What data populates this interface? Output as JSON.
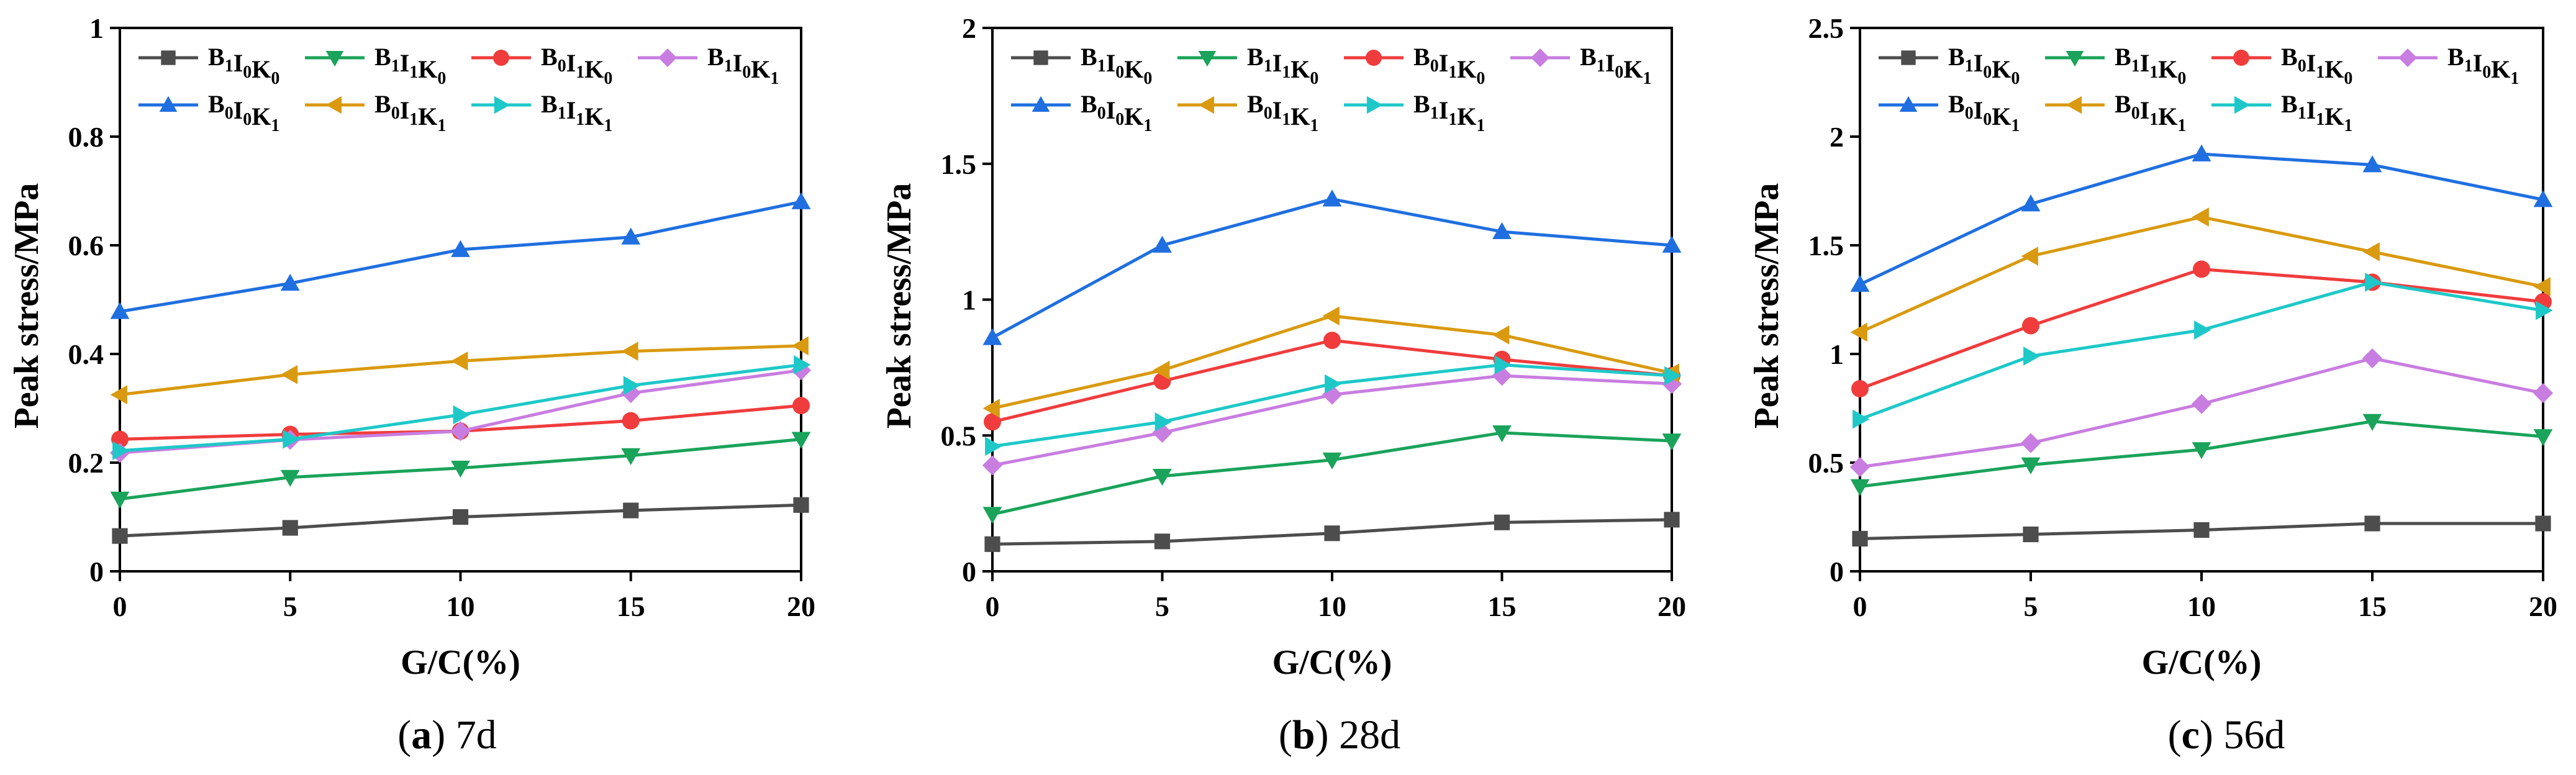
{
  "figure": {
    "captions": [
      {
        "letter": "a",
        "text": " 7d"
      },
      {
        "letter": "b",
        "text": " 28d"
      },
      {
        "letter": "c",
        "text": " 56d"
      }
    ]
  },
  "colors": {
    "B1I0K0": "#4d4d4d",
    "B1I1K0": "#1aa35a",
    "B0I1K0": "#f03c3c",
    "B1I0K1": "#c87de0",
    "B0I0K1": "#1f6fe0",
    "B0I1K1": "#d99a10",
    "B1I1K1": "#1ec8c8"
  },
  "chart_data": [
    {
      "type": "line",
      "title": "(a) 7d",
      "xlabel": "G/C(%)",
      "ylabel": "Peak stress/MPa",
      "x": [
        0,
        5,
        10,
        15,
        20
      ],
      "xlim": [
        0,
        20
      ],
      "ylim": [
        0,
        1
      ],
      "yticks": [
        "0",
        "0.2",
        "0.4",
        "0.6",
        "0.8",
        "1"
      ],
      "xticks": [
        "0",
        "5",
        "10",
        "15",
        "20"
      ],
      "series": [
        {
          "key": "B1I0K0",
          "name": "B1I0K0",
          "values": [
            0.065,
            0.08,
            0.1,
            0.112,
            0.122
          ]
        },
        {
          "key": "B1I1K0",
          "name": "B1I1K0",
          "values": [
            0.133,
            0.173,
            0.19,
            0.213,
            0.243
          ]
        },
        {
          "key": "B0I1K0",
          "name": "B0I1K0",
          "values": [
            0.243,
            0.252,
            0.258,
            0.277,
            0.305
          ]
        },
        {
          "key": "B1I0K1",
          "name": "B1I0K1",
          "values": [
            0.218,
            0.242,
            0.258,
            0.328,
            0.37
          ]
        },
        {
          "key": "B0I0K1",
          "name": "B0I0K1",
          "values": [
            0.478,
            0.53,
            0.592,
            0.615,
            0.68
          ]
        },
        {
          "key": "B0I1K1",
          "name": "B0I1K1",
          "values": [
            0.325,
            0.362,
            0.387,
            0.405,
            0.415
          ]
        },
        {
          "key": "B1I1K1",
          "name": "B1I1K1",
          "values": [
            0.222,
            0.243,
            0.288,
            0.342,
            0.38
          ]
        }
      ]
    },
    {
      "type": "line",
      "title": "(b) 28d",
      "xlabel": "G/C(%)",
      "ylabel": "Peak stress/MPa",
      "x": [
        0,
        5,
        10,
        15,
        20
      ],
      "xlim": [
        0,
        20
      ],
      "ylim": [
        0,
        2
      ],
      "yticks": [
        "0",
        "0.5",
        "1",
        "1.5",
        "2"
      ],
      "xticks": [
        "0",
        "5",
        "10",
        "15",
        "20"
      ],
      "series": [
        {
          "key": "B1I0K0",
          "name": "B1I0K0",
          "values": [
            0.1,
            0.11,
            0.14,
            0.18,
            0.19
          ]
        },
        {
          "key": "B1I1K0",
          "name": "B1I1K0",
          "values": [
            0.21,
            0.35,
            0.41,
            0.51,
            0.48
          ]
        },
        {
          "key": "B0I1K0",
          "name": "B0I1K0",
          "values": [
            0.55,
            0.7,
            0.85,
            0.78,
            0.72
          ]
        },
        {
          "key": "B1I0K1",
          "name": "B1I0K1",
          "values": [
            0.39,
            0.51,
            0.65,
            0.72,
            0.69
          ]
        },
        {
          "key": "B0I0K1",
          "name": "B0I0K1",
          "values": [
            0.86,
            1.2,
            1.37,
            1.25,
            1.2
          ]
        },
        {
          "key": "B0I1K1",
          "name": "B0I1K1",
          "values": [
            0.6,
            0.74,
            0.94,
            0.87,
            0.73
          ]
        },
        {
          "key": "B1I1K1",
          "name": "B1I1K1",
          "values": [
            0.46,
            0.55,
            0.69,
            0.76,
            0.72
          ]
        }
      ]
    },
    {
      "type": "line",
      "title": "(c) 56d",
      "xlabel": "G/C(%)",
      "ylabel": "Peak stress/MPa",
      "x": [
        0,
        5,
        10,
        15,
        20
      ],
      "xlim": [
        0,
        20
      ],
      "ylim": [
        0,
        2.5
      ],
      "yticks": [
        "0",
        "0.5",
        "1",
        "1.5",
        "2",
        "2.5"
      ],
      "xticks": [
        "0",
        "5",
        "10",
        "15",
        "20"
      ],
      "series": [
        {
          "key": "B1I0K0",
          "name": "B1I0K0",
          "values": [
            0.15,
            0.17,
            0.19,
            0.22,
            0.22
          ]
        },
        {
          "key": "B1I1K0",
          "name": "B1I1K0",
          "values": [
            0.39,
            0.49,
            0.56,
            0.69,
            0.62
          ]
        },
        {
          "key": "B0I1K0",
          "name": "B0I1K0",
          "values": [
            0.84,
            1.13,
            1.39,
            1.33,
            1.24
          ]
        },
        {
          "key": "B1I0K1",
          "name": "B1I0K1",
          "values": [
            0.48,
            0.59,
            0.77,
            0.98,
            0.82
          ]
        },
        {
          "key": "B0I0K1",
          "name": "B0I0K1",
          "values": [
            1.32,
            1.69,
            1.92,
            1.87,
            1.71
          ]
        },
        {
          "key": "B0I1K1",
          "name": "B0I1K1",
          "values": [
            1.1,
            1.45,
            1.63,
            1.47,
            1.31
          ]
        },
        {
          "key": "B1I1K1",
          "name": "B1I1K1",
          "values": [
            0.7,
            0.99,
            1.11,
            1.33,
            1.2
          ]
        }
      ]
    }
  ]
}
